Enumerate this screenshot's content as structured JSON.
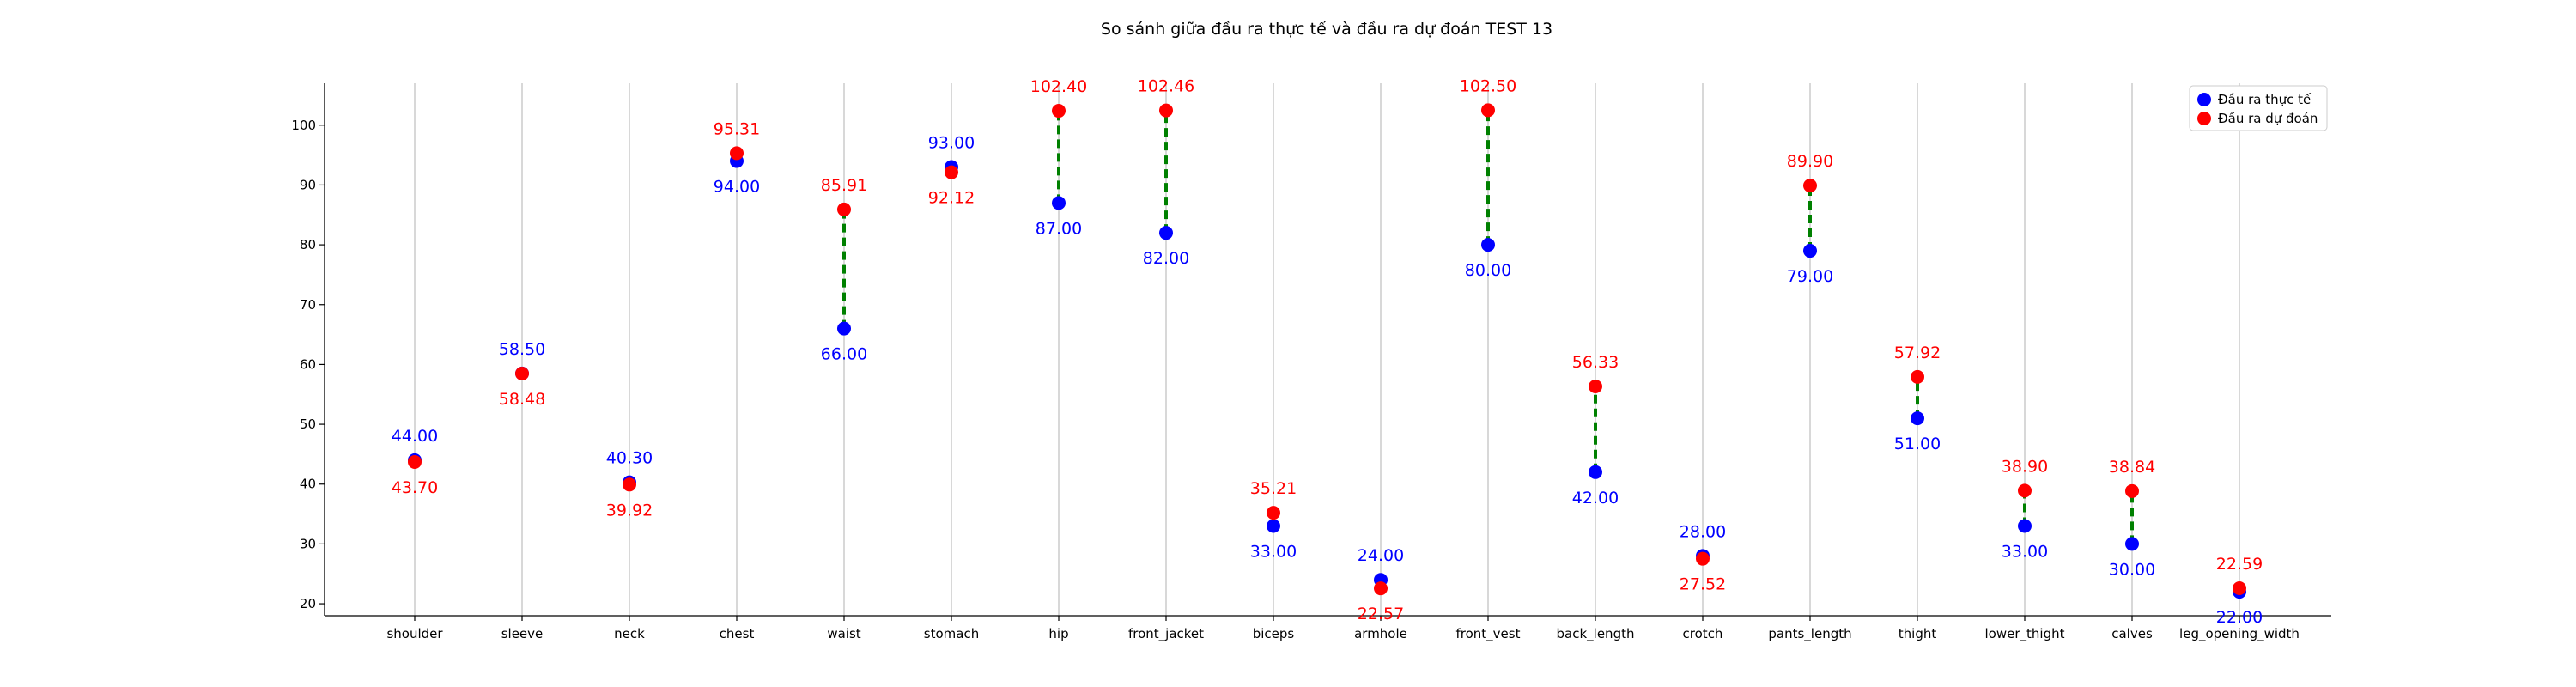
{
  "chart_data": {
    "type": "scatter",
    "title": "So sánh giữa đầu ra thực tế và đầu ra dự đoán TEST 13",
    "xlabel": "",
    "ylabel": "",
    "categories": [
      "shoulder",
      "sleeve",
      "neck",
      "chest",
      "waist",
      "stomach",
      "hip",
      "front_jacket",
      "biceps",
      "armhole",
      "front_vest",
      "back_length",
      "crotch",
      "pants_length",
      "thight",
      "lower_thight",
      "calves",
      "leg_opening_width"
    ],
    "series": [
      {
        "name": "Đầu ra thực tế",
        "color": "#0000ff",
        "values": [
          44.0,
          58.5,
          40.3,
          94.0,
          66.0,
          93.0,
          87.0,
          82.0,
          33.0,
          24.0,
          80.0,
          42.0,
          28.0,
          79.0,
          51.0,
          33.0,
          30.0,
          22.0
        ],
        "labels": [
          "44.00",
          "58.50",
          "40.30",
          "94.00",
          "66.00",
          "93.00",
          "87.00",
          "82.00",
          "33.00",
          "24.00",
          "80.00",
          "42.00",
          "28.00",
          "79.00",
          "51.00",
          "33.00",
          "30.00",
          "22.00"
        ]
      },
      {
        "name": "Đầu ra dự đoán",
        "color": "#ff0000",
        "values": [
          43.7,
          58.48,
          39.92,
          95.31,
          85.91,
          92.12,
          102.4,
          102.46,
          35.21,
          22.57,
          102.5,
          56.33,
          27.52,
          89.9,
          57.92,
          38.9,
          38.84,
          22.59
        ],
        "labels": [
          "43.70",
          "58.48",
          "39.92",
          "95.31",
          "85.91",
          "92.12",
          "102.40",
          "102.46",
          "35.21",
          "22.57",
          "102.50",
          "56.33",
          "27.52",
          "89.90",
          "57.92",
          "38.90",
          "38.84",
          "22.59"
        ]
      }
    ],
    "connector_color": "#008000",
    "ylim": [
      18,
      107
    ],
    "yticks": [
      20,
      30,
      40,
      50,
      60,
      70,
      80,
      90,
      100
    ],
    "grid": "vertical-only",
    "legend": "top-right"
  }
}
